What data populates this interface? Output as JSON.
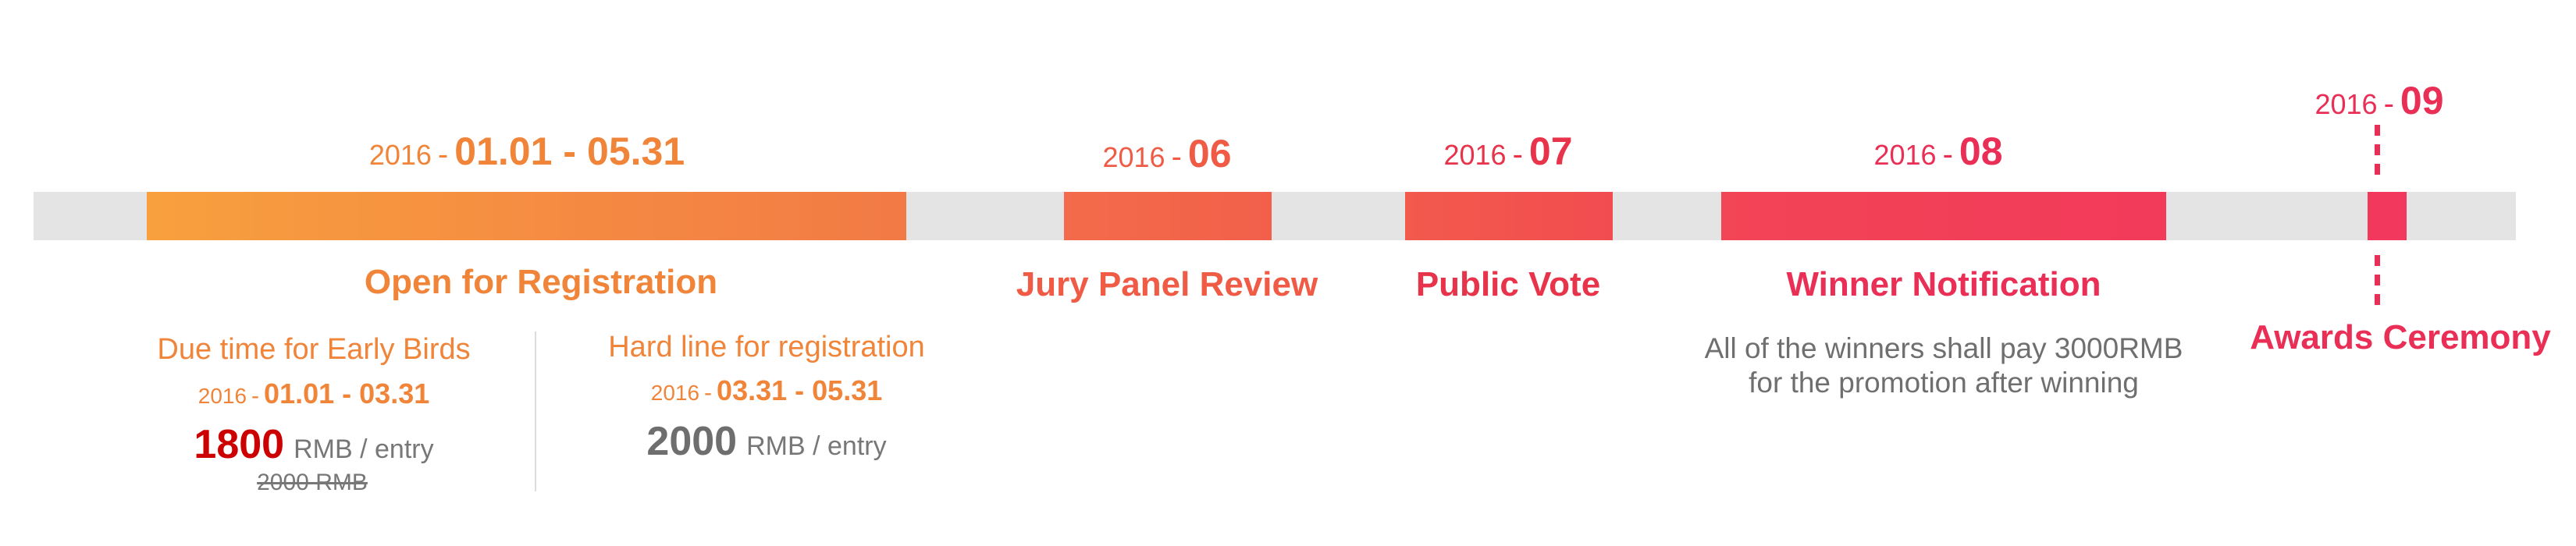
{
  "colors": {
    "track": "#e4e4e4",
    "orange": "#f0853a",
    "coral": "#ef5b45",
    "red": "#e8344a",
    "rose": "#ea2f56",
    "price_red": "#cc0000",
    "price_gray": "#6e6e6e",
    "note_gray": "#6f6f6f"
  },
  "phases": [
    {
      "year": "2016",
      "dash": "-",
      "start": "01.01",
      "range_sep": "-",
      "end": "05.31",
      "title": "Open for Registration"
    },
    {
      "year": "2016",
      "dash": "-",
      "month": "06",
      "title": "Jury Panel Review"
    },
    {
      "year": "2016",
      "dash": "-",
      "month": "07",
      "title": "Public Vote"
    },
    {
      "year": "2016",
      "dash": "-",
      "month": "08",
      "title": "Winner Notification",
      "note_line1": "All of the winners shall pay 3000RMB",
      "note_line2": "for the promotion after winning"
    },
    {
      "year": "2016",
      "dash": "-",
      "month": "09",
      "title": "Awards Ceremony"
    }
  ],
  "early_bird": {
    "heading": "Due time for Early Birds",
    "year": "2016",
    "dash": "-",
    "start": "01.01",
    "range_sep": "-",
    "end": "03.31",
    "price": "1800",
    "unit": "RMB / entry",
    "old_price": "2000 RMB"
  },
  "hard_line": {
    "heading": "Hard line for registration",
    "year": "2016",
    "dash": "-",
    "start": "03.31",
    "range_sep": "-",
    "end": "05.31",
    "price": "2000",
    "unit": "RMB / entry"
  }
}
